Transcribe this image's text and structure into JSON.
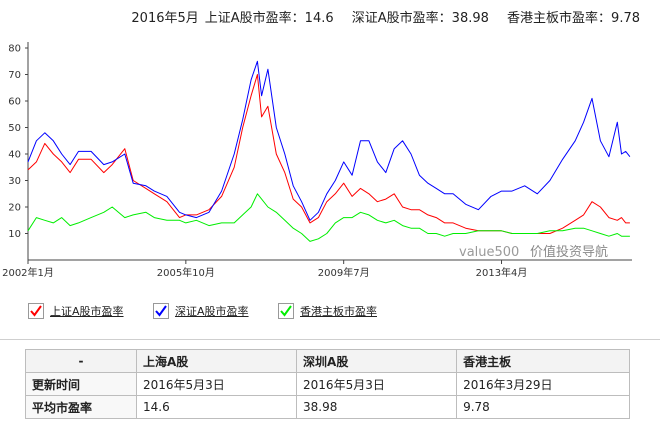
{
  "header": {
    "date": "2016年5月",
    "sh_label": "上证A股市盈率：",
    "sh_value": "14.6",
    "sz_label": "深证A股市盈率：",
    "sz_value": "38.98",
    "hk_label": "香港主板市盈率：",
    "hk_value": "9.78"
  },
  "watermark": {
    "brand": "value500",
    "text": "价值投资导航"
  },
  "legend": [
    {
      "label": "上证A股市盈率",
      "color": "#ff0000"
    },
    {
      "label": "深证A股市盈率",
      "color": "#0000ff"
    },
    {
      "label": "香港主板市盈率",
      "color": "#00ee00"
    }
  ],
  "table": {
    "headers": [
      "-",
      "上海A股",
      "深圳A股",
      "香港主板"
    ],
    "rows": [
      {
        "label": "更新时间",
        "values": [
          "2016年5月3日",
          "2016年5月3日",
          "2016年3月29日"
        ]
      },
      {
        "label": "平均市盈率",
        "values": [
          "14.6",
          "38.98",
          "9.78"
        ]
      }
    ]
  },
  "chart_data": {
    "type": "line",
    "ylim": [
      0,
      80
    ],
    "y_ticks": [
      10,
      20,
      30,
      40,
      50,
      60,
      70,
      80
    ],
    "xlim": [
      2002.0,
      2016.35
    ],
    "x_ticks": [
      {
        "value": 2002.0,
        "label": "2002年1月"
      },
      {
        "value": 2005.75,
        "label": "2005年10月"
      },
      {
        "value": 2009.5,
        "label": "2009年7月"
      },
      {
        "value": 2013.25,
        "label": "2013年4月"
      }
    ],
    "grid": false,
    "legend_position": "bottom",
    "series": [
      {
        "name": "上证A股市盈率",
        "color": "#ff0000",
        "points": [
          [
            2002.0,
            34
          ],
          [
            2002.2,
            37
          ],
          [
            2002.4,
            44
          ],
          [
            2002.6,
            40
          ],
          [
            2002.8,
            37
          ],
          [
            2003.0,
            33
          ],
          [
            2003.2,
            38
          ],
          [
            2003.5,
            38
          ],
          [
            2003.8,
            33
          ],
          [
            2004.0,
            36
          ],
          [
            2004.3,
            42
          ],
          [
            2004.5,
            30
          ],
          [
            2004.8,
            27
          ],
          [
            2005.0,
            25
          ],
          [
            2005.3,
            22
          ],
          [
            2005.6,
            16
          ],
          [
            2005.75,
            17
          ],
          [
            2006.0,
            17
          ],
          [
            2006.3,
            19
          ],
          [
            2006.6,
            24
          ],
          [
            2006.9,
            35
          ],
          [
            2007.1,
            50
          ],
          [
            2007.3,
            62
          ],
          [
            2007.45,
            70
          ],
          [
            2007.55,
            54
          ],
          [
            2007.7,
            58
          ],
          [
            2007.9,
            40
          ],
          [
            2008.1,
            33
          ],
          [
            2008.3,
            23
          ],
          [
            2008.5,
            20
          ],
          [
            2008.7,
            14
          ],
          [
            2008.9,
            16
          ],
          [
            2009.1,
            22
          ],
          [
            2009.3,
            25
          ],
          [
            2009.5,
            29
          ],
          [
            2009.7,
            24
          ],
          [
            2009.9,
            27
          ],
          [
            2010.1,
            25
          ],
          [
            2010.3,
            22
          ],
          [
            2010.5,
            23
          ],
          [
            2010.7,
            25
          ],
          [
            2010.9,
            20
          ],
          [
            2011.1,
            19
          ],
          [
            2011.3,
            19
          ],
          [
            2011.5,
            17
          ],
          [
            2011.7,
            16
          ],
          [
            2011.9,
            14
          ],
          [
            2012.1,
            14
          ],
          [
            2012.4,
            12
          ],
          [
            2012.7,
            11
          ],
          [
            2013.0,
            11
          ],
          [
            2013.25,
            11
          ],
          [
            2013.5,
            10
          ],
          [
            2013.8,
            10
          ],
          [
            2014.1,
            10
          ],
          [
            2014.4,
            10
          ],
          [
            2014.7,
            12
          ],
          [
            2015.0,
            15
          ],
          [
            2015.2,
            17
          ],
          [
            2015.4,
            22
          ],
          [
            2015.6,
            20
          ],
          [
            2015.8,
            16
          ],
          [
            2016.0,
            15
          ],
          [
            2016.1,
            16
          ],
          [
            2016.2,
            14
          ],
          [
            2016.3,
            14
          ]
        ]
      },
      {
        "name": "深证A股市盈率",
        "color": "#0000ff",
        "points": [
          [
            2002.0,
            37
          ],
          [
            2002.2,
            45
          ],
          [
            2002.4,
            48
          ],
          [
            2002.6,
            45
          ],
          [
            2002.8,
            40
          ],
          [
            2003.0,
            36
          ],
          [
            2003.2,
            41
          ],
          [
            2003.5,
            41
          ],
          [
            2003.8,
            36
          ],
          [
            2004.0,
            37
          ],
          [
            2004.3,
            40
          ],
          [
            2004.5,
            29
          ],
          [
            2004.8,
            28
          ],
          [
            2005.0,
            26
          ],
          [
            2005.3,
            24
          ],
          [
            2005.6,
            18
          ],
          [
            2005.75,
            17
          ],
          [
            2006.0,
            16
          ],
          [
            2006.3,
            18
          ],
          [
            2006.6,
            26
          ],
          [
            2006.9,
            40
          ],
          [
            2007.1,
            53
          ],
          [
            2007.3,
            68
          ],
          [
            2007.45,
            75
          ],
          [
            2007.55,
            62
          ],
          [
            2007.7,
            72
          ],
          [
            2007.9,
            50
          ],
          [
            2008.1,
            40
          ],
          [
            2008.3,
            28
          ],
          [
            2008.5,
            22
          ],
          [
            2008.7,
            15
          ],
          [
            2008.9,
            18
          ],
          [
            2009.1,
            25
          ],
          [
            2009.3,
            30
          ],
          [
            2009.5,
            37
          ],
          [
            2009.7,
            32
          ],
          [
            2009.9,
            45
          ],
          [
            2010.1,
            45
          ],
          [
            2010.3,
            37
          ],
          [
            2010.5,
            33
          ],
          [
            2010.7,
            42
          ],
          [
            2010.9,
            45
          ],
          [
            2011.1,
            40
          ],
          [
            2011.3,
            32
          ],
          [
            2011.5,
            29
          ],
          [
            2011.7,
            27
          ],
          [
            2011.9,
            25
          ],
          [
            2012.1,
            25
          ],
          [
            2012.4,
            21
          ],
          [
            2012.7,
            19
          ],
          [
            2013.0,
            24
          ],
          [
            2013.25,
            26
          ],
          [
            2013.5,
            26
          ],
          [
            2013.8,
            28
          ],
          [
            2014.1,
            25
          ],
          [
            2014.4,
            30
          ],
          [
            2014.7,
            38
          ],
          [
            2015.0,
            45
          ],
          [
            2015.2,
            52
          ],
          [
            2015.4,
            61
          ],
          [
            2015.6,
            45
          ],
          [
            2015.8,
            39
          ],
          [
            2016.0,
            52
          ],
          [
            2016.1,
            40
          ],
          [
            2016.2,
            41
          ],
          [
            2016.3,
            39
          ]
        ]
      },
      {
        "name": "香港主板市盈率",
        "color": "#00ee00",
        "points": [
          [
            2002.0,
            11
          ],
          [
            2002.2,
            16
          ],
          [
            2002.4,
            15
          ],
          [
            2002.6,
            14
          ],
          [
            2002.8,
            16
          ],
          [
            2003.0,
            13
          ],
          [
            2003.2,
            14
          ],
          [
            2003.5,
            16
          ],
          [
            2003.8,
            18
          ],
          [
            2004.0,
            20
          ],
          [
            2004.3,
            16
          ],
          [
            2004.5,
            17
          ],
          [
            2004.8,
            18
          ],
          [
            2005.0,
            16
          ],
          [
            2005.3,
            15
          ],
          [
            2005.6,
            15
          ],
          [
            2005.75,
            14
          ],
          [
            2006.0,
            15
          ],
          [
            2006.3,
            13
          ],
          [
            2006.6,
            14
          ],
          [
            2006.9,
            14
          ],
          [
            2007.1,
            17
          ],
          [
            2007.3,
            20
          ],
          [
            2007.45,
            25
          ],
          [
            2007.55,
            23
          ],
          [
            2007.7,
            20
          ],
          [
            2007.9,
            18
          ],
          [
            2008.1,
            15
          ],
          [
            2008.3,
            12
          ],
          [
            2008.5,
            10
          ],
          [
            2008.7,
            7
          ],
          [
            2008.9,
            8
          ],
          [
            2009.1,
            10
          ],
          [
            2009.3,
            14
          ],
          [
            2009.5,
            16
          ],
          [
            2009.7,
            16
          ],
          [
            2009.9,
            18
          ],
          [
            2010.1,
            17
          ],
          [
            2010.3,
            15
          ],
          [
            2010.5,
            14
          ],
          [
            2010.7,
            15
          ],
          [
            2010.9,
            13
          ],
          [
            2011.1,
            12
          ],
          [
            2011.3,
            12
          ],
          [
            2011.5,
            10
          ],
          [
            2011.7,
            10
          ],
          [
            2011.9,
            9
          ],
          [
            2012.1,
            10
          ],
          [
            2012.4,
            10
          ],
          [
            2012.7,
            11
          ],
          [
            2013.0,
            11
          ],
          [
            2013.25,
            11
          ],
          [
            2013.5,
            10
          ],
          [
            2013.8,
            10
          ],
          [
            2014.1,
            10
          ],
          [
            2014.4,
            11
          ],
          [
            2014.7,
            11
          ],
          [
            2015.0,
            12
          ],
          [
            2015.2,
            12
          ],
          [
            2015.4,
            11
          ],
          [
            2015.6,
            10
          ],
          [
            2015.8,
            9
          ],
          [
            2016.0,
            10
          ],
          [
            2016.1,
            9
          ],
          [
            2016.2,
            9
          ],
          [
            2016.3,
            9
          ]
        ]
      }
    ]
  }
}
